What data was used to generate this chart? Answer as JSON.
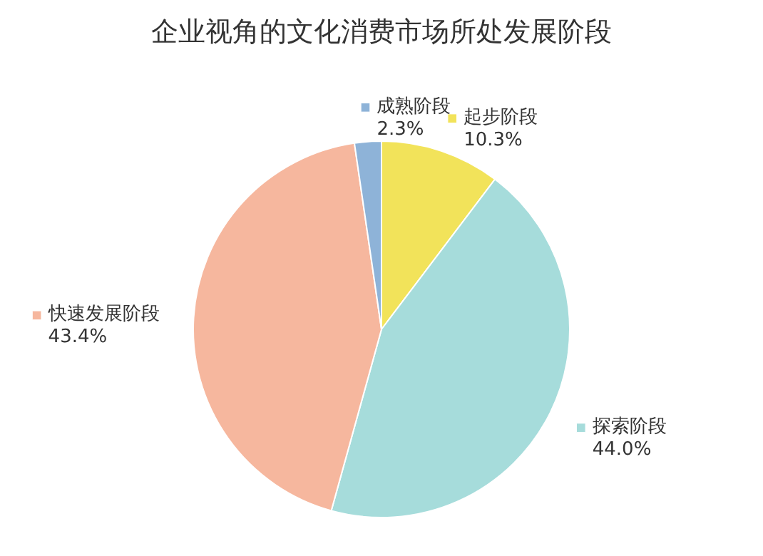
{
  "chart_data": {
    "type": "pie",
    "title": "企业视角的文化消费市场所处发展阶段",
    "categories": [
      "起步阶段",
      "探索阶段",
      "快速发展阶段",
      "成熟阶段"
    ],
    "values": [
      10.3,
      44.0,
      43.4,
      2.3
    ],
    "colors": [
      "#f2e35a",
      "#a6dcdb",
      "#f6b79e",
      "#8eb3d8"
    ],
    "value_labels": [
      "10.3%",
      "44.0%",
      "43.4%",
      "2.3%"
    ],
    "legend": true
  }
}
